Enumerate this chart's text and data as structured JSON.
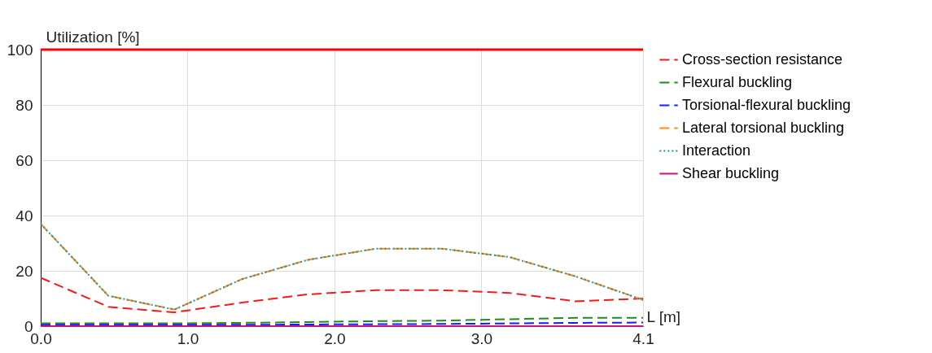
{
  "chart_data": {
    "type": "line",
    "xlabel": "L [m]",
    "ylabel": "Utilization [%]",
    "x": [
      0,
      0.46,
      0.91,
      1.37,
      1.82,
      2.28,
      2.73,
      3.19,
      3.64,
      4.1
    ],
    "xlim": [
      0,
      4.1
    ],
    "xticks": [
      {
        "value": 0,
        "label": "0.0"
      },
      {
        "value": 1,
        "label": "1.0"
      },
      {
        "value": 2,
        "label": "2.0"
      },
      {
        "value": 3,
        "label": "3.0"
      },
      4.1
    ],
    "ylim": [
      0,
      100
    ],
    "yticks": [
      0,
      20,
      40,
      60,
      80,
      100
    ],
    "grid": true,
    "legend": "right",
    "marker": "none",
    "ref_lines": [
      {
        "axis": "y",
        "value": 100,
        "color": "#ff0000",
        "line_style": "solid"
      }
    ],
    "series": [
      {
        "name": "Cross-section resistance",
        "color": "#ee1c1c",
        "line_style": "dashed",
        "values": [
          17.5,
          7,
          5,
          8.5,
          11.5,
          13,
          13,
          12,
          9,
          10
        ]
      },
      {
        "name": "Flexural buckling",
        "color": "#1e8c1e",
        "line_style": "dashed",
        "values": [
          1,
          1,
          1,
          1.2,
          1.5,
          1.8,
          2,
          2.5,
          3,
          3
        ]
      },
      {
        "name": "Torsional-flexural buckling",
        "color": "#1a1aff",
        "line_style": "dashed",
        "values": [
          0.5,
          0.5,
          0.5,
          0.5,
          0.6,
          0.7,
          0.8,
          1,
          1.2,
          1.3
        ]
      },
      {
        "name": "Lateral torsional buckling",
        "color": "#ff8c1a",
        "line_style": "dashed",
        "values": [
          37,
          11,
          6,
          17,
          24,
          28,
          28,
          25,
          18,
          9.5
        ]
      },
      {
        "name": "Interaction",
        "color": "#1e9696",
        "line_style": "dotted",
        "values": [
          37,
          11,
          6,
          17,
          24,
          28,
          28,
          25,
          18,
          9.5
        ]
      },
      {
        "name": "Shear buckling",
        "color": "#c8147d",
        "line_style": "solid",
        "values": [
          0,
          0,
          0,
          0,
          0,
          0,
          0,
          0,
          0,
          0
        ]
      }
    ]
  }
}
